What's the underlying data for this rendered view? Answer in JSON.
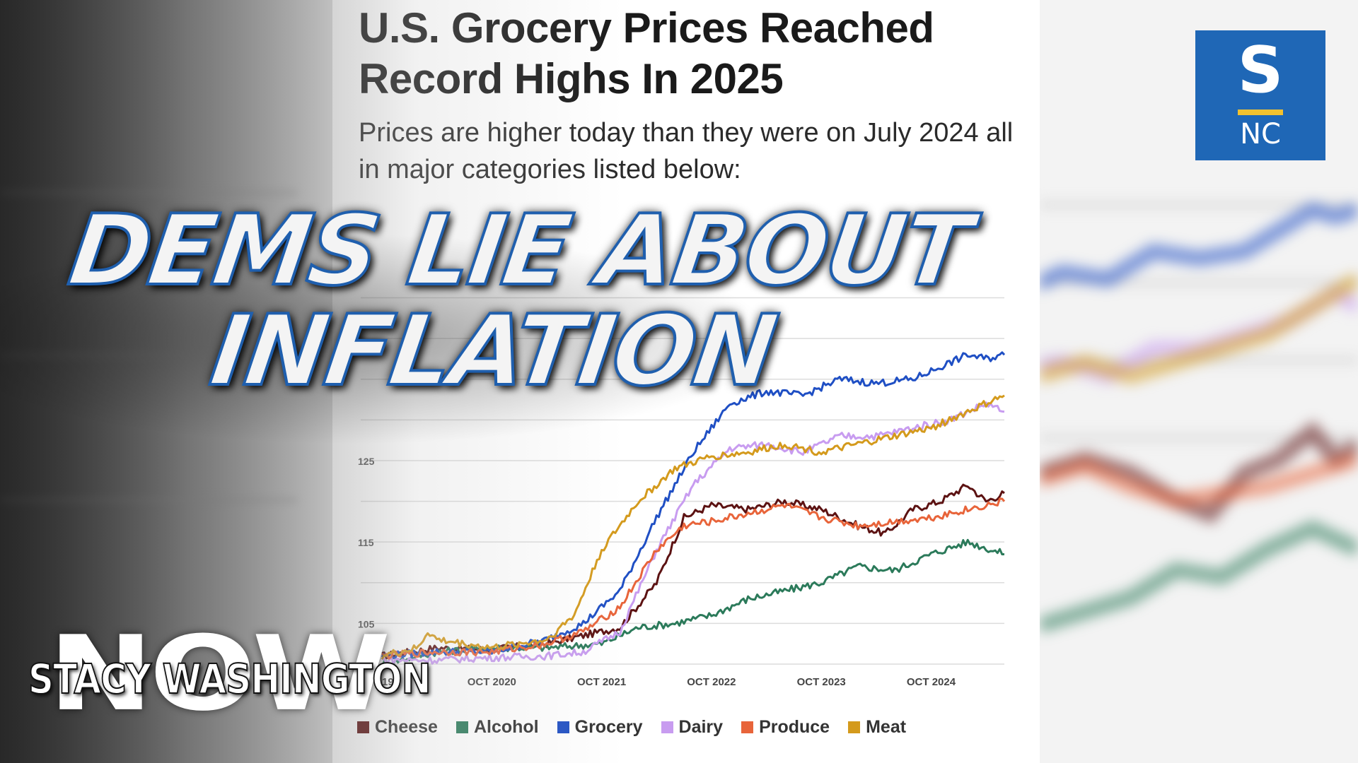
{
  "headline": "U.S. Grocery Prices Reached Record Highs In 2025",
  "subheadline": "Prices are higher today than they were on July 2024 all in major categories listed below:",
  "overlay": {
    "line1": "DEMS LIE ABOUT",
    "line2": "INFLATION"
  },
  "logo": {
    "letter": "S",
    "sub": "NC"
  },
  "brand": {
    "big": "NOW",
    "name": "STACY WASHINGTON"
  },
  "chart_data": {
    "type": "line",
    "title": "U.S. Grocery Prices Reached Record Highs In 2025",
    "subtitle": "Prices are higher today than they were on July 2024 all in major categories listed below:",
    "x_ticks": [
      {
        "t": 0,
        "label": "19"
      },
      {
        "t": 12,
        "label": "OCT 2020"
      },
      {
        "t": 24,
        "label": "OCT 2021"
      },
      {
        "t": 36,
        "label": "OCT 2022"
      },
      {
        "t": 48,
        "label": "OCT 2023"
      },
      {
        "t": 60,
        "label": "OCT 2024"
      }
    ],
    "y_ticks": [
      105,
      115,
      125
    ],
    "ylim": [
      100,
      146
    ],
    "xlim": [
      0,
      68
    ],
    "grid": true,
    "legend_position": "bottom",
    "series": [
      {
        "name": "Cheese",
        "color": "#5c1212",
        "points": [
          [
            0,
            101
          ],
          [
            6,
            102
          ],
          [
            12,
            101.8
          ],
          [
            18,
            102.5
          ],
          [
            22,
            103.5
          ],
          [
            26,
            104.5
          ],
          [
            30,
            110
          ],
          [
            33,
            118
          ],
          [
            36,
            119.5
          ],
          [
            40,
            119
          ],
          [
            44,
            120
          ],
          [
            48,
            119
          ],
          [
            52,
            117
          ],
          [
            55,
            116
          ],
          [
            58,
            119
          ],
          [
            61,
            120
          ],
          [
            64,
            122
          ],
          [
            66,
            120
          ],
          [
            68,
            121
          ]
        ]
      },
      {
        "name": "Alcohol",
        "color": "#2b7a5a",
        "points": [
          [
            0,
            100
          ],
          [
            6,
            101.5
          ],
          [
            12,
            102
          ],
          [
            18,
            102
          ],
          [
            24,
            102.5
          ],
          [
            28,
            104.5
          ],
          [
            32,
            105
          ],
          [
            36,
            106
          ],
          [
            40,
            108
          ],
          [
            44,
            109
          ],
          [
            48,
            110
          ],
          [
            52,
            112
          ],
          [
            56,
            111.5
          ],
          [
            60,
            113.5
          ],
          [
            64,
            115
          ],
          [
            68,
            113.5
          ]
        ]
      },
      {
        "name": "Grocery",
        "color": "#1f4fc4",
        "points": [
          [
            0,
            101
          ],
          [
            6,
            101.5
          ],
          [
            12,
            101.5
          ],
          [
            18,
            103
          ],
          [
            22,
            105
          ],
          [
            26,
            109
          ],
          [
            30,
            118
          ],
          [
            34,
            126
          ],
          [
            38,
            132
          ],
          [
            42,
            133.5
          ],
          [
            46,
            133
          ],
          [
            50,
            135
          ],
          [
            54,
            134.5
          ],
          [
            58,
            135
          ],
          [
            62,
            137
          ],
          [
            64,
            138
          ],
          [
            66,
            137.5
          ],
          [
            68,
            138
          ]
        ]
      },
      {
        "name": "Dairy",
        "color": "#c89cf0",
        "points": [
          [
            0,
            100.5
          ],
          [
            6,
            100.5
          ],
          [
            12,
            100.8
          ],
          [
            18,
            101
          ],
          [
            22,
            101.5
          ],
          [
            26,
            104
          ],
          [
            30,
            114
          ],
          [
            34,
            122
          ],
          [
            38,
            126.5
          ],
          [
            42,
            127
          ],
          [
            46,
            126
          ],
          [
            50,
            128
          ],
          [
            54,
            128
          ],
          [
            58,
            129
          ],
          [
            62,
            130
          ],
          [
            66,
            132
          ],
          [
            68,
            131
          ]
        ]
      },
      {
        "name": "Produce",
        "color": "#e8643a",
        "points": [
          [
            0,
            101
          ],
          [
            6,
            101.5
          ],
          [
            12,
            101.5
          ],
          [
            18,
            102.5
          ],
          [
            22,
            104
          ],
          [
            26,
            107
          ],
          [
            30,
            114
          ],
          [
            33,
            117
          ],
          [
            36,
            117.5
          ],
          [
            40,
            118.5
          ],
          [
            44,
            119.5
          ],
          [
            48,
            118
          ],
          [
            52,
            117
          ],
          [
            56,
            117.5
          ],
          [
            60,
            118
          ],
          [
            64,
            119
          ],
          [
            68,
            120
          ]
        ]
      },
      {
        "name": "Meat",
        "color": "#d49a1c",
        "points": [
          [
            0,
            101
          ],
          [
            4,
            102
          ],
          [
            5,
            104
          ],
          [
            6,
            103
          ],
          [
            12,
            102
          ],
          [
            18,
            103
          ],
          [
            21,
            106
          ],
          [
            24,
            114
          ],
          [
            28,
            120
          ],
          [
            32,
            124
          ],
          [
            36,
            125.5
          ],
          [
            40,
            126
          ],
          [
            44,
            127
          ],
          [
            48,
            126
          ],
          [
            52,
            127
          ],
          [
            56,
            128
          ],
          [
            60,
            129
          ],
          [
            64,
            131
          ],
          [
            68,
            133
          ]
        ]
      }
    ]
  }
}
